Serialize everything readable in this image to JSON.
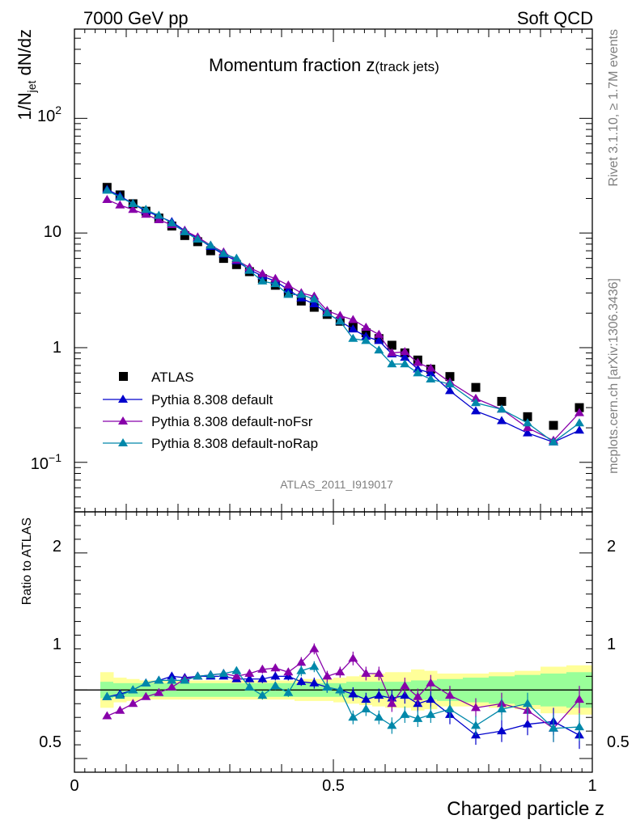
{
  "header": {
    "left": "7000 GeV pp",
    "right": "Soft QCD"
  },
  "side_texts": {
    "rivet": "Rivet 3.1.10, ≥ 1.7M events",
    "mcplots": "mcplots.cern.ch [arXiv:1306.3436]"
  },
  "colors": {
    "data": "#000000",
    "default": "#0000cc",
    "noFsr": "#8800aa",
    "noRap": "#0088aa",
    "band_inner": "#99ff99",
    "band_outer": "#ffff99"
  },
  "chart_data": [
    {
      "type": "line",
      "title": "Momentum fraction z",
      "title_sub": "(track jets)",
      "ylabel": "1/N",
      "ylabel_sub": "jet",
      "ylabel_tail": " dN/dz",
      "yscale": "log",
      "ylim": [
        0.037,
        600
      ],
      "xlim": [
        0,
        1
      ],
      "ytick_labels": {
        "major": "10",
        "m1": "−1",
        "one": "1",
        "ten": "10",
        "hund": "10",
        "two": "2"
      },
      "watermark": "ATLAS_2011_I919017",
      "x": [
        0.063,
        0.088,
        0.113,
        0.138,
        0.163,
        0.188,
        0.213,
        0.238,
        0.263,
        0.288,
        0.313,
        0.338,
        0.363,
        0.388,
        0.413,
        0.438,
        0.463,
        0.488,
        0.513,
        0.538,
        0.563,
        0.588,
        0.613,
        0.638,
        0.663,
        0.688,
        0.725,
        0.775,
        0.825,
        0.875,
        0.925,
        0.975
      ],
      "legend": [
        "ATLAS",
        "Pythia 8.308 default",
        "Pythia 8.308 default-noFsr",
        "Pythia 8.308 default-noRap"
      ],
      "series": [
        {
          "name": "ATLAS",
          "key": "data",
          "marker": "square",
          "values": [
            25,
            21.5,
            18,
            15.5,
            13.5,
            11.5,
            9.5,
            8.4,
            7.0,
            6.0,
            5.3,
            4.6,
            4.0,
            3.5,
            3.0,
            2.55,
            2.25,
            1.95,
            1.7,
            1.5,
            1.35,
            1.2,
            1.05,
            0.9,
            0.78,
            0.65,
            0.56,
            0.45,
            0.34,
            0.25,
            0.21,
            0.3
          ]
        },
        {
          "name": "Pythia 8.308 default",
          "key": "default",
          "marker": "triangle",
          "values": [
            24,
            21,
            18,
            15.5,
            14,
            12.5,
            10.5,
            9.0,
            7.6,
            6.5,
            5.7,
            4.8,
            4.2,
            3.8,
            3.2,
            2.7,
            2.4,
            2.0,
            1.7,
            1.45,
            1.25,
            1.15,
            0.88,
            0.82,
            0.65,
            0.6,
            0.42,
            0.28,
            0.23,
            0.18,
            0.15,
            0.19
          ]
        },
        {
          "name": "Pythia 8.308 default-noFsr",
          "key": "noFsr",
          "marker": "triangle",
          "values": [
            19.5,
            17.5,
            16,
            14.5,
            13,
            11.8,
            10.5,
            9.2,
            7.8,
            6.8,
            5.8,
            5.0,
            4.4,
            4.0,
            3.5,
            3.0,
            2.8,
            2.1,
            1.9,
            1.75,
            1.5,
            1.3,
            0.9,
            0.92,
            0.74,
            0.66,
            0.5,
            0.36,
            0.29,
            0.2,
            0.155,
            0.27
          ]
        },
        {
          "name": "Pythia 8.308 default-noRap",
          "key": "noRap",
          "marker": "triangle",
          "values": [
            23.5,
            20.5,
            18,
            16,
            14.2,
            12.2,
            10.2,
            8.8,
            7.8,
            6.6,
            6.0,
            4.7,
            3.8,
            3.6,
            2.9,
            2.9,
            2.65,
            2.0,
            1.7,
            1.2,
            1.15,
            0.95,
            0.72,
            0.72,
            0.6,
            0.53,
            0.48,
            0.33,
            0.29,
            0.22,
            0.15,
            0.22
          ]
        }
      ]
    },
    {
      "type": "line",
      "ylabel": "Ratio to ATLAS",
      "xlabel": "Charged particle z",
      "ylim": [
        0.4,
        2.3
      ],
      "xlim": [
        0,
        1
      ],
      "ytick_labels": [
        "0.5",
        "1",
        "2"
      ],
      "xtick_labels": [
        "0",
        "0.5",
        "1"
      ],
      "x": [
        0.063,
        0.088,
        0.113,
        0.138,
        0.163,
        0.188,
        0.213,
        0.238,
        0.263,
        0.288,
        0.313,
        0.338,
        0.363,
        0.388,
        0.413,
        0.438,
        0.463,
        0.488,
        0.513,
        0.538,
        0.563,
        0.588,
        0.613,
        0.638,
        0.663,
        0.688,
        0.725,
        0.775,
        0.825,
        0.875,
        0.925,
        0.975
      ],
      "band_edges": [
        0.05,
        0.075,
        0.1,
        0.125,
        0.15,
        0.175,
        0.2,
        0.225,
        0.25,
        0.275,
        0.3,
        0.325,
        0.35,
        0.375,
        0.4,
        0.425,
        0.45,
        0.475,
        0.5,
        0.525,
        0.55,
        0.575,
        0.6,
        0.625,
        0.65,
        0.675,
        0.7,
        0.75,
        0.8,
        0.85,
        0.9,
        0.95,
        1.0
      ],
      "band_inner": [
        0.06,
        0.05,
        0.05,
        0.05,
        0.05,
        0.05,
        0.05,
        0.05,
        0.05,
        0.05,
        0.05,
        0.05,
        0.05,
        0.05,
        0.05,
        0.05,
        0.05,
        0.05,
        0.05,
        0.06,
        0.06,
        0.06,
        0.06,
        0.06,
        0.07,
        0.07,
        0.08,
        0.09,
        0.1,
        0.11,
        0.12,
        0.13
      ],
      "band_outer": [
        0.13,
        0.09,
        0.08,
        0.07,
        0.07,
        0.07,
        0.07,
        0.07,
        0.07,
        0.07,
        0.07,
        0.07,
        0.07,
        0.07,
        0.07,
        0.08,
        0.08,
        0.08,
        0.09,
        0.1,
        0.11,
        0.12,
        0.13,
        0.13,
        0.15,
        0.14,
        0.12,
        0.12,
        0.13,
        0.14,
        0.17,
        0.18
      ],
      "series": [
        {
          "name": "Pythia 8.308 default",
          "key": "default",
          "values": [
            0.95,
            0.97,
            1.0,
            1.05,
            1.07,
            1.1,
            1.09,
            1.1,
            1.1,
            1.1,
            1.08,
            1.08,
            1.08,
            1.1,
            1.1,
            1.06,
            1.05,
            1.02,
            1.0,
            0.97,
            0.93,
            0.96,
            0.94,
            0.96,
            0.9,
            0.93,
            0.82,
            0.67,
            0.7,
            0.75,
            0.77,
            0.67
          ],
          "errors": [
            0.02,
            0.02,
            0.02,
            0.02,
            0.02,
            0.02,
            0.02,
            0.02,
            0.02,
            0.02,
            0.02,
            0.02,
            0.03,
            0.03,
            0.03,
            0.03,
            0.04,
            0.04,
            0.04,
            0.05,
            0.05,
            0.05,
            0.06,
            0.06,
            0.06,
            0.06,
            0.07,
            0.07,
            0.08,
            0.08,
            0.1,
            0.1
          ]
        },
        {
          "name": "Pythia 8.308 default-noFsr",
          "key": "noFsr",
          "values": [
            0.81,
            0.85,
            0.9,
            0.95,
            0.98,
            1.02,
            1.08,
            1.1,
            1.11,
            1.12,
            1.1,
            1.12,
            1.15,
            1.16,
            1.13,
            1.2,
            1.3,
            1.1,
            1.13,
            1.23,
            1.12,
            1.12,
            0.9,
            1.03,
            0.95,
            1.05,
            0.96,
            0.87,
            0.9,
            0.85,
            0.72,
            0.93
          ],
          "errors": [
            0.02,
            0.02,
            0.02,
            0.02,
            0.02,
            0.02,
            0.02,
            0.02,
            0.02,
            0.02,
            0.02,
            0.02,
            0.03,
            0.03,
            0.03,
            0.04,
            0.04,
            0.04,
            0.04,
            0.05,
            0.05,
            0.05,
            0.06,
            0.06,
            0.06,
            0.06,
            0.07,
            0.07,
            0.08,
            0.08,
            0.1,
            0.1
          ]
        },
        {
          "name": "Pythia 8.308 default-noRap",
          "key": "noRap",
          "values": [
            0.95,
            0.96,
            1.0,
            1.05,
            1.07,
            1.07,
            1.07,
            1.1,
            1.11,
            1.12,
            1.14,
            1.02,
            0.96,
            1.03,
            0.98,
            1.14,
            1.17,
            1.02,
            1.0,
            0.8,
            0.86,
            0.8,
            0.74,
            0.82,
            0.79,
            0.82,
            0.86,
            0.74,
            0.86,
            0.9,
            0.72,
            0.73
          ],
          "errors": [
            0.02,
            0.02,
            0.02,
            0.02,
            0.02,
            0.02,
            0.02,
            0.02,
            0.02,
            0.02,
            0.02,
            0.02,
            0.03,
            0.03,
            0.03,
            0.04,
            0.04,
            0.04,
            0.04,
            0.05,
            0.05,
            0.05,
            0.06,
            0.06,
            0.06,
            0.06,
            0.07,
            0.07,
            0.08,
            0.08,
            0.1,
            0.1
          ]
        }
      ]
    }
  ]
}
